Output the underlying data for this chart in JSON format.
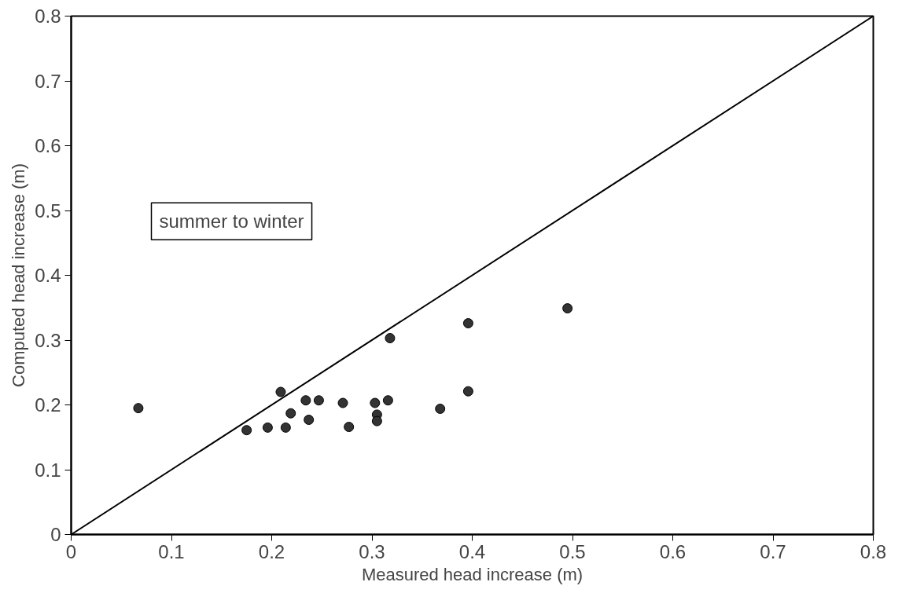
{
  "chart_data": {
    "type": "scatter",
    "xlabel": "Measured head increase (m)",
    "ylabel": "Computed head increase (m)",
    "xlim": [
      0,
      0.8
    ],
    "ylim": [
      0,
      0.8
    ],
    "xticks": [
      0,
      0.1,
      0.2,
      0.3,
      0.4,
      0.5,
      0.6,
      0.7,
      0.8
    ],
    "yticks": [
      0,
      0.1,
      0.2,
      0.3,
      0.4,
      0.5,
      0.6,
      0.7,
      0.8
    ],
    "grid": false,
    "annotations": [
      "summer to winter"
    ],
    "series": [
      {
        "marker": "circle",
        "color": "#333333",
        "x": [
          0.067,
          0.175,
          0.196,
          0.214,
          0.209,
          0.219,
          0.237,
          0.234,
          0.247,
          0.271,
          0.277,
          0.303,
          0.316,
          0.305,
          0.305,
          0.318,
          0.368,
          0.396,
          0.396,
          0.495
        ],
        "values": [
          0.195,
          0.161,
          0.165,
          0.165,
          0.22,
          0.187,
          0.177,
          0.207,
          0.207,
          0.203,
          0.166,
          0.203,
          0.207,
          0.185,
          0.175,
          0.303,
          0.194,
          0.221,
          0.326,
          0.349
        ]
      },
      {
        "type": "line",
        "color": "#000000",
        "x": [
          0,
          0.8
        ],
        "values": [
          0,
          0.8
        ]
      }
    ]
  }
}
